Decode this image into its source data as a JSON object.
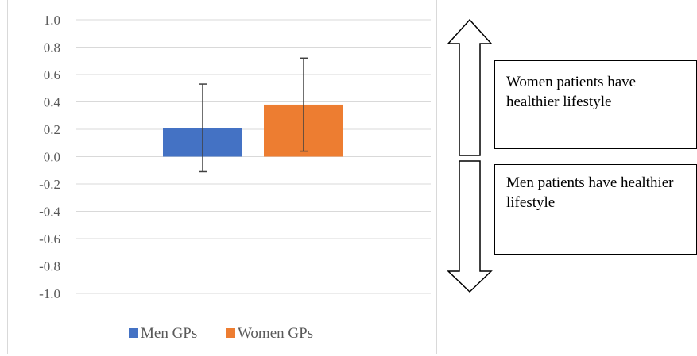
{
  "chart_data": {
    "type": "bar",
    "categories": [
      ""
    ],
    "series": [
      {
        "name": "Men GPs",
        "values": [
          0.21
        ],
        "error_low": [
          -0.11
        ],
        "error_high": [
          0.53
        ],
        "color": "#4472c4"
      },
      {
        "name": "Women GPs",
        "values": [
          0.38
        ],
        "error_low": [
          0.04
        ],
        "error_high": [
          0.72
        ],
        "color": "#ed7d31"
      }
    ],
    "title": "",
    "xlabel": "",
    "ylabel": "",
    "ylim": [
      -1.0,
      1.0
    ],
    "yticks": [
      "1.0",
      "0.8",
      "0.6",
      "0.4",
      "0.2",
      "0.0",
      "-0.2",
      "-0.4",
      "-0.6",
      "-0.8",
      "-1.0"
    ],
    "ytick_values": [
      1.0,
      0.8,
      0.6,
      0.4,
      0.2,
      0.0,
      -0.2,
      -0.4,
      -0.6,
      -0.8,
      -1.0
    ],
    "grid": true,
    "legend_position": "bottom"
  },
  "annotations": {
    "upper_label": "Women patients have healthier lifestyle",
    "lower_label": "Men patients have healthier lifestyle",
    "arrow_icon": "double-headed-arrow-icon"
  },
  "colors": {
    "grid": "#d9d9d9",
    "error_bar": "#404040",
    "tick_text": "#595959"
  }
}
